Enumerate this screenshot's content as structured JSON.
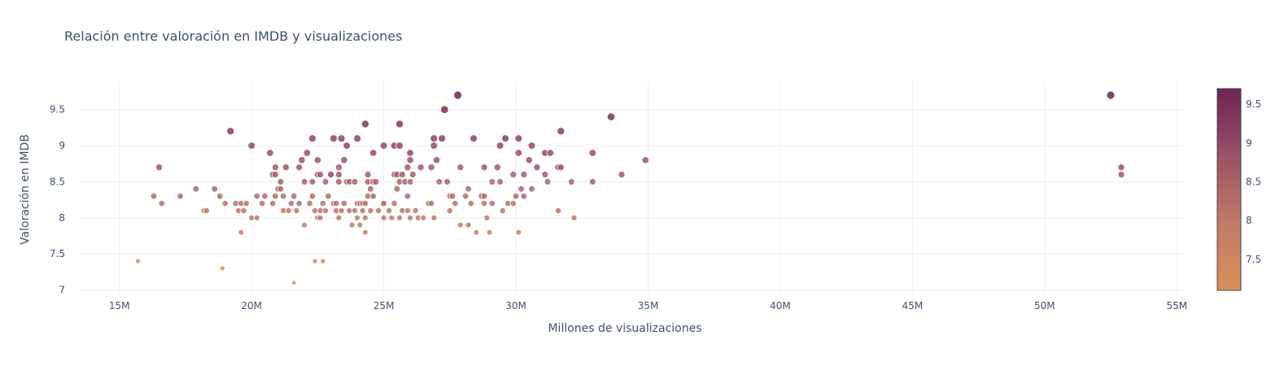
{
  "chart_data": {
    "type": "scatter",
    "title": "Relación entre valoración en IMDB y visualizaciones",
    "xlabel": "Millones de visualizaciones",
    "ylabel": "Valoración en IMDB",
    "xlim": [
      13.5,
      55.3
    ],
    "ylim": [
      6.95,
      9.88
    ],
    "grid": true,
    "x_ticks": [
      15,
      20,
      25,
      30,
      35,
      40,
      45,
      50,
      55
    ],
    "x_tick_labels": [
      "15M",
      "20M",
      "25M",
      "30M",
      "35M",
      "40M",
      "45M",
      "50M",
      "55M"
    ],
    "y_ticks": [
      7,
      7.5,
      8,
      8.5,
      9,
      9.5
    ],
    "y_tick_labels": [
      "7",
      "7.5",
      "8",
      "8.5",
      "9",
      "9.5"
    ],
    "colorscale": {
      "range": [
        7.1,
        9.7
      ],
      "stops": [
        [
          0,
          "#d6905a"
        ],
        [
          0.33,
          "#c27b66"
        ],
        [
          0.66,
          "#9b5367"
        ],
        [
          1,
          "#6c2356"
        ]
      ],
      "ticks": [
        7.5,
        8,
        8.5,
        9,
        9.5
      ],
      "tick_labels": [
        "7.5",
        "8",
        "8.5",
        "9",
        "9.5"
      ]
    },
    "points": [
      [
        15.7,
        7.4
      ],
      [
        16.3,
        8.3
      ],
      [
        16.5,
        8.7
      ],
      [
        16.6,
        8.2
      ],
      [
        17.3,
        8.3
      ],
      [
        17.9,
        8.4
      ],
      [
        18.2,
        8.1
      ],
      [
        18.3,
        8.1
      ],
      [
        18.6,
        8.4
      ],
      [
        18.8,
        8.3
      ],
      [
        18.9,
        7.3
      ],
      [
        19.0,
        8.2
      ],
      [
        19.2,
        9.2
      ],
      [
        19.4,
        8.2
      ],
      [
        19.5,
        8.1
      ],
      [
        19.6,
        7.8
      ],
      [
        19.6,
        8.2
      ],
      [
        19.7,
        8.1
      ],
      [
        19.8,
        8.2
      ],
      [
        20.0,
        8.0
      ],
      [
        20.0,
        9.0
      ],
      [
        20.2,
        8.3
      ],
      [
        20.2,
        8.0
      ],
      [
        20.4,
        8.2
      ],
      [
        20.5,
        8.3
      ],
      [
        20.7,
        8.9
      ],
      [
        20.8,
        8.2
      ],
      [
        20.8,
        8.6
      ],
      [
        20.9,
        8.3
      ],
      [
        20.9,
        8.6
      ],
      [
        20.9,
        8.7
      ],
      [
        21.0,
        8.4
      ],
      [
        21.1,
        8.4
      ],
      [
        21.1,
        8.5
      ],
      [
        21.2,
        8.1
      ],
      [
        21.2,
        8.3
      ],
      [
        21.3,
        8.7
      ],
      [
        21.4,
        8.1
      ],
      [
        21.5,
        8.2
      ],
      [
        21.6,
        8.3
      ],
      [
        21.6,
        7.1
      ],
      [
        21.7,
        8.1
      ],
      [
        21.8,
        8.2
      ],
      [
        21.8,
        8.7
      ],
      [
        21.9,
        8.8
      ],
      [
        22.0,
        7.9
      ],
      [
        22.0,
        8.5
      ],
      [
        22.1,
        8.9
      ],
      [
        22.2,
        8.2
      ],
      [
        22.3,
        8.5
      ],
      [
        22.3,
        9.1
      ],
      [
        22.3,
        8.3
      ],
      [
        22.4,
        8.1
      ],
      [
        22.4,
        7.4
      ],
      [
        22.5,
        8.0
      ],
      [
        22.5,
        8.8
      ],
      [
        22.5,
        8.6
      ],
      [
        22.6,
        8.6
      ],
      [
        22.6,
        8.1
      ],
      [
        22.6,
        8.0
      ],
      [
        22.7,
        7.4
      ],
      [
        22.7,
        8.2
      ],
      [
        22.8,
        8.5
      ],
      [
        22.8,
        8.1
      ],
      [
        22.9,
        8.3
      ],
      [
        23.0,
        8.6
      ],
      [
        23.0,
        8.6
      ],
      [
        23.1,
        8.2
      ],
      [
        23.1,
        9.1
      ],
      [
        23.2,
        8.1
      ],
      [
        23.2,
        8.2
      ],
      [
        23.3,
        8.5
      ],
      [
        23.3,
        8.6
      ],
      [
        23.3,
        8.7
      ],
      [
        23.3,
        8.0
      ],
      [
        23.4,
        9.1
      ],
      [
        23.4,
        8.1
      ],
      [
        23.5,
        8.2
      ],
      [
        23.5,
        8.8
      ],
      [
        23.6,
        9.0
      ],
      [
        23.6,
        8.5
      ],
      [
        23.7,
        8.5
      ],
      [
        23.7,
        8.1
      ],
      [
        23.8,
        7.9
      ],
      [
        23.9,
        8.1
      ],
      [
        23.9,
        8.5
      ],
      [
        24.0,
        8.0
      ],
      [
        24.0,
        8.2
      ],
      [
        24.0,
        9.1
      ],
      [
        24.1,
        8.2
      ],
      [
        24.1,
        7.9
      ],
      [
        24.2,
        8.1
      ],
      [
        24.2,
        8.2
      ],
      [
        24.3,
        9.3
      ],
      [
        24.3,
        8.0
      ],
      [
        24.3,
        8.2
      ],
      [
        24.3,
        7.8
      ],
      [
        24.4,
        8.5
      ],
      [
        24.4,
        8.3
      ],
      [
        24.4,
        8.6
      ],
      [
        24.5,
        8.1
      ],
      [
        24.5,
        8.4
      ],
      [
        24.6,
        8.3
      ],
      [
        24.6,
        8.5
      ],
      [
        24.6,
        8.9
      ],
      [
        24.7,
        8.5
      ],
      [
        24.8,
        8.1
      ],
      [
        25.0,
        8.2
      ],
      [
        25.0,
        8.2
      ],
      [
        25.0,
        9.0
      ],
      [
        25.0,
        8.0
      ],
      [
        25.2,
        8.1
      ],
      [
        25.3,
        8.0
      ],
      [
        25.4,
        8.6
      ],
      [
        25.4,
        9.0
      ],
      [
        25.4,
        8.2
      ],
      [
        25.5,
        8.4
      ],
      [
        25.5,
        8.6
      ],
      [
        25.6,
        8.5
      ],
      [
        25.6,
        8.0
      ],
      [
        25.6,
        9.0
      ],
      [
        25.6,
        9.3
      ],
      [
        25.7,
        8.1
      ],
      [
        25.7,
        8.6
      ],
      [
        25.8,
        8.5
      ],
      [
        25.9,
        8.1
      ],
      [
        25.9,
        8.3
      ],
      [
        25.9,
        8.7
      ],
      [
        26.0,
        8.8
      ],
      [
        26.0,
        8.9
      ],
      [
        26.0,
        8.5
      ],
      [
        26.0,
        8.0
      ],
      [
        26.1,
        8.6
      ],
      [
        26.2,
        8.1
      ],
      [
        26.3,
        8.0
      ],
      [
        26.4,
        8.7
      ],
      [
        26.5,
        8.0
      ],
      [
        26.7,
        8.2
      ],
      [
        26.8,
        8.2
      ],
      [
        26.8,
        8.7
      ],
      [
        26.9,
        9.0
      ],
      [
        26.9,
        8.0
      ],
      [
        26.9,
        9.1
      ],
      [
        27.0,
        8.8
      ],
      [
        27.1,
        8.5
      ],
      [
        27.2,
        9.1
      ],
      [
        27.3,
        9.5
      ],
      [
        27.4,
        8.5
      ],
      [
        27.5,
        8.3
      ],
      [
        27.5,
        8.1
      ],
      [
        27.6,
        8.3
      ],
      [
        27.7,
        8.2
      ],
      [
        27.8,
        9.7
      ],
      [
        27.9,
        8.7
      ],
      [
        27.9,
        7.9
      ],
      [
        28.1,
        8.3
      ],
      [
        28.2,
        8.4
      ],
      [
        28.2,
        7.9
      ],
      [
        28.3,
        8.2
      ],
      [
        28.4,
        9.1
      ],
      [
        28.5,
        7.8
      ],
      [
        28.7,
        8.3
      ],
      [
        28.8,
        8.2
      ],
      [
        28.8,
        8.7
      ],
      [
        28.8,
        8.3
      ],
      [
        28.9,
        8.0
      ],
      [
        29.0,
        7.8
      ],
      [
        29.1,
        8.5
      ],
      [
        29.1,
        8.2
      ],
      [
        29.3,
        8.7
      ],
      [
        29.4,
        9.0
      ],
      [
        29.4,
        8.5
      ],
      [
        29.5,
        8.1
      ],
      [
        29.6,
        9.1
      ],
      [
        29.7,
        8.2
      ],
      [
        29.9,
        8.6
      ],
      [
        29.9,
        8.2
      ],
      [
        30.0,
        8.3
      ],
      [
        30.1,
        7.8
      ],
      [
        30.1,
        9.1
      ],
      [
        30.1,
        8.9
      ],
      [
        30.2,
        8.4
      ],
      [
        30.3,
        8.6
      ],
      [
        30.3,
        8.3
      ],
      [
        30.5,
        8.8
      ],
      [
        30.6,
        8.4
      ],
      [
        30.6,
        9.0
      ],
      [
        30.8,
        8.7
      ],
      [
        31.1,
        8.6
      ],
      [
        31.1,
        8.9
      ],
      [
        31.2,
        8.5
      ],
      [
        31.3,
        8.9
      ],
      [
        31.6,
        8.7
      ],
      [
        31.6,
        8.1
      ],
      [
        31.7,
        9.2
      ],
      [
        31.7,
        8.7
      ],
      [
        32.1,
        8.5
      ],
      [
        32.2,
        8.0
      ],
      [
        32.9,
        8.9
      ],
      [
        32.9,
        8.5
      ],
      [
        33.6,
        9.4
      ],
      [
        34.0,
        8.6
      ],
      [
        34.9,
        8.8
      ],
      [
        52.5,
        9.7
      ],
      [
        52.9,
        8.7
      ],
      [
        52.9,
        8.6
      ]
    ]
  }
}
